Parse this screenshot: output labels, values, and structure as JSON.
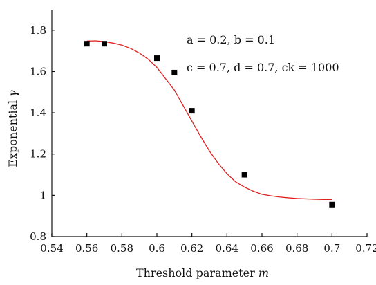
{
  "chart_data": {
    "type": "scatter",
    "xlabel": "Threshold parameter",
    "xlabel_var": "m",
    "ylabel": "Exponential",
    "ylabel_var": "γ",
    "xlim": [
      0.54,
      0.72
    ],
    "ylim": [
      0.8,
      1.9
    ],
    "xticks": [
      "0.54",
      "0.56",
      "0.58",
      "0.6",
      "0.62",
      "0.64",
      "0.66",
      "0.68",
      "0.7",
      "0.72"
    ],
    "yticks": [
      "0.8",
      "1",
      "1.2",
      "1.4",
      "1.6",
      "1.8"
    ],
    "grid": false,
    "annotations": [
      "a = 0.2, b = 0.1",
      "c = 0.7, d = 0.7, ck = 1000"
    ],
    "series": [
      {
        "kind": "points",
        "marker": "square",
        "color": "#000000",
        "x": [
          0.56,
          0.57,
          0.6,
          0.61,
          0.62,
          0.65,
          0.7
        ],
        "y": [
          1.735,
          1.735,
          1.665,
          1.595,
          1.41,
          1.1,
          0.955
        ]
      },
      {
        "kind": "line",
        "color": "#e02020",
        "x": [
          0.56,
          0.565,
          0.57,
          0.575,
          0.58,
          0.585,
          0.59,
          0.595,
          0.6,
          0.605,
          0.61,
          0.615,
          0.62,
          0.625,
          0.63,
          0.635,
          0.64,
          0.645,
          0.65,
          0.655,
          0.66,
          0.665,
          0.67,
          0.675,
          0.68,
          0.685,
          0.69,
          0.695,
          0.7
        ],
        "y": [
          1.748,
          1.749,
          1.745,
          1.738,
          1.728,
          1.712,
          1.69,
          1.66,
          1.62,
          1.565,
          1.51,
          1.435,
          1.36,
          1.285,
          1.215,
          1.155,
          1.105,
          1.065,
          1.04,
          1.02,
          1.005,
          0.998,
          0.992,
          0.988,
          0.985,
          0.983,
          0.981,
          0.98,
          0.98
        ]
      }
    ]
  }
}
